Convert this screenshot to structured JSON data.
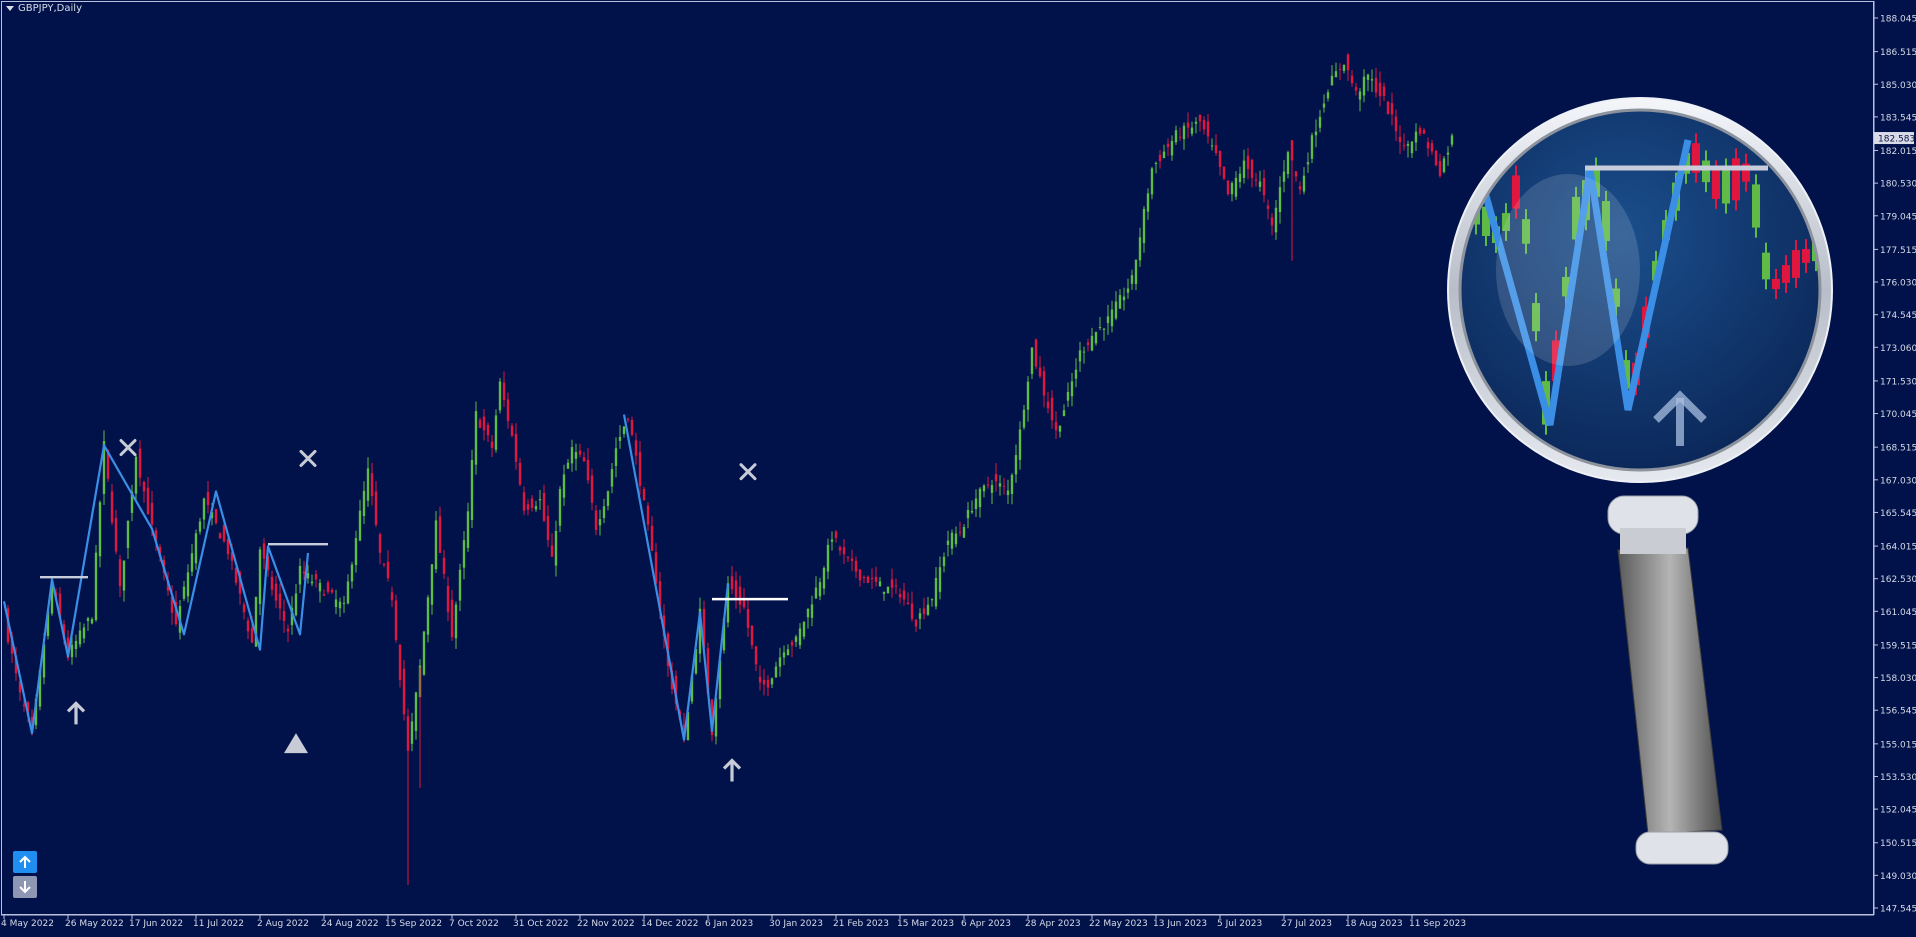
{
  "window": {
    "title": "GBPJPY,Daily"
  },
  "colors": {
    "background": "#01124a",
    "frame": "#b9c2dd",
    "bull": "#5fba46",
    "bear": "#e0163e",
    "zigzag": "#3a8ee6",
    "level": "#c8cddc",
    "marker": "#c7cbd6",
    "price_tag_bg": "#d8dce8"
  },
  "chart_data": {
    "type": "candlestick",
    "symbol": "GBPJPY",
    "timeframe": "Daily",
    "y_ticks": [
      "188.045",
      "186.515",
      "185.030",
      "183.545",
      "182.015",
      "180.530",
      "179.045",
      "177.515",
      "176.030",
      "174.545",
      "173.060",
      "171.530",
      "170.045",
      "168.515",
      "167.030",
      "165.545",
      "164.015",
      "162.530",
      "161.045",
      "159.515",
      "158.030",
      "156.545",
      "155.015",
      "153.530",
      "152.045",
      "150.515",
      "149.030",
      "147.545"
    ],
    "ylim": [
      147.545,
      188.045
    ],
    "x_ticks": [
      "4 May 2022",
      "26 May 2022",
      "17 Jun 2022",
      "11 Jul 2022",
      "2 Aug 2022",
      "24 Aug 2022",
      "15 Sep 2022",
      "7 Oct 2022",
      "31 Oct 2022",
      "22 Nov 2022",
      "14 Dec 2022",
      "6 Jan 2023",
      "30 Jan 2023",
      "21 Feb 2023",
      "15 Mar 2023",
      "6 Apr 2023",
      "28 Apr 2023",
      "22 May 2023",
      "13 Jun 2023",
      "5 Jul 2023",
      "27 Jul 2023",
      "18 Aug 2023",
      "11 Sep 2023"
    ],
    "x_tick_index": [
      0,
      16,
      32,
      48,
      64,
      80,
      96,
      112,
      128,
      144,
      160,
      176,
      192,
      208,
      224,
      240,
      256,
      272,
      288,
      304,
      320,
      336,
      352
    ],
    "current_price": "182.583",
    "price_path": [
      [
        0,
        160.8
      ],
      [
        4,
        157.2
      ],
      [
        7,
        155.5
      ],
      [
        12,
        162.3
      ],
      [
        16,
        159.0
      ],
      [
        22,
        160.9
      ],
      [
        25,
        168.6
      ],
      [
        29,
        162.0
      ],
      [
        33,
        168.2
      ],
      [
        37,
        164.8
      ],
      [
        43,
        160.4
      ],
      [
        50,
        166.1
      ],
      [
        56,
        163.8
      ],
      [
        62,
        159.6
      ],
      [
        64,
        163.9
      ],
      [
        68,
        161.5
      ],
      [
        71,
        160.2
      ],
      [
        74,
        162.9
      ],
      [
        80,
        162.0
      ],
      [
        85,
        161.2
      ],
      [
        88,
        164.5
      ],
      [
        91,
        167.4
      ],
      [
        94,
        163.6
      ],
      [
        97,
        161.7
      ],
      [
        101,
        154.6
      ],
      [
        104,
        158.5
      ],
      [
        108,
        165.0
      ],
      [
        112,
        160.0
      ],
      [
        116,
        165.5
      ],
      [
        118,
        170.0
      ],
      [
        122,
        168.5
      ],
      [
        124,
        171.4
      ],
      [
        127,
        169.0
      ],
      [
        130,
        165.8
      ],
      [
        134,
        166.1
      ],
      [
        137,
        163.3
      ],
      [
        139,
        166.5
      ],
      [
        142,
        168.4
      ],
      [
        145,
        167.8
      ],
      [
        148,
        164.9
      ],
      [
        151,
        166.6
      ],
      [
        153,
        168.5
      ],
      [
        156,
        170.0
      ],
      [
        159,
        167.0
      ],
      [
        163,
        162.5
      ],
      [
        166,
        158.5
      ],
      [
        170,
        155.2
      ],
      [
        174,
        161.0
      ],
      [
        177,
        155.6
      ],
      [
        181,
        162.3
      ],
      [
        185,
        161.2
      ],
      [
        189,
        157.6
      ],
      [
        191,
        157.8
      ],
      [
        195,
        159.4
      ],
      [
        198,
        159.7
      ],
      [
        204,
        162.5
      ],
      [
        207,
        164.5
      ],
      [
        210,
        163.5
      ],
      [
        214,
        162.7
      ],
      [
        219,
        162.2
      ],
      [
        224,
        161.9
      ],
      [
        228,
        160.6
      ],
      [
        232,
        161.7
      ],
      [
        236,
        164.3
      ],
      [
        239,
        164.7
      ],
      [
        243,
        166.2
      ],
      [
        247,
        167.0
      ],
      [
        251,
        166.5
      ],
      [
        254,
        169.2
      ],
      [
        257,
        173.0
      ],
      [
        260,
        171.0
      ],
      [
        263,
        169.2
      ],
      [
        266,
        170.8
      ],
      [
        269,
        172.8
      ],
      [
        272,
        173.6
      ],
      [
        276,
        174.3
      ],
      [
        282,
        176.1
      ],
      [
        287,
        181.2
      ],
      [
        293,
        182.7
      ],
      [
        299,
        183.3
      ],
      [
        303,
        181.7
      ],
      [
        306,
        180.0
      ],
      [
        310,
        181.4
      ],
      [
        314,
        180.5
      ],
      [
        317,
        178.5
      ],
      [
        321,
        182.1
      ],
      [
        324,
        180.2
      ],
      [
        327,
        182.5
      ],
      [
        331,
        184.9
      ],
      [
        335,
        186.1
      ],
      [
        338,
        184.6
      ],
      [
        341,
        185.4
      ],
      [
        345,
        184.3
      ],
      [
        350,
        182.1
      ],
      [
        354,
        183.0
      ],
      [
        359,
        181.1
      ],
      [
        362,
        182.58
      ]
    ],
    "zigzag_lines": [
      [
        [
          0,
          161.5
        ],
        [
          7,
          155.5
        ],
        [
          12,
          162.5
        ],
        [
          16,
          159.0
        ],
        [
          25,
          168.6
        ],
        [
          37,
          164.8
        ],
        [
          45,
          160.0
        ],
        [
          53,
          166.5
        ],
        [
          64,
          159.3
        ],
        [
          66,
          164.0
        ],
        [
          74,
          160.0
        ],
        [
          76,
          163.7
        ]
      ],
      [
        [
          155,
          170.0
        ],
        [
          170,
          155.2
        ],
        [
          174,
          161.0
        ],
        [
          177,
          155.6
        ],
        [
          181,
          162.3
        ]
      ]
    ],
    "levels": [
      [
        9,
        21,
        162.6,
        "#c8cddc"
      ],
      [
        66,
        81,
        164.1,
        "#c8cddc"
      ],
      [
        177,
        196,
        161.6,
        "#ffffff"
      ]
    ],
    "markers": [
      {
        "kind": "cross",
        "i": 31,
        "p": 168.5
      },
      {
        "kind": "cross",
        "i": 76,
        "p": 168.0
      },
      {
        "kind": "cross",
        "i": 186,
        "p": 167.4
      },
      {
        "kind": "arrow-up",
        "i": 18,
        "p": 156.4
      },
      {
        "kind": "arrow-up",
        "i": 182,
        "p": 153.8
      },
      {
        "kind": "triangle-up",
        "i": 73,
        "p": 155.0
      }
    ]
  }
}
